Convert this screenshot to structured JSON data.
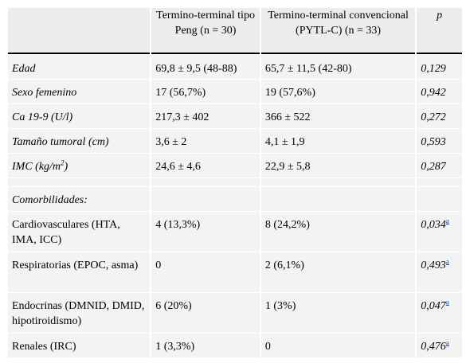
{
  "header": {
    "col1": "",
    "col2": "Termino-terminal tipo Peng (n = 30)",
    "col3": "Termino-terminal convencional (PYTL-C) (n = 33)",
    "col4": "p"
  },
  "rows": [
    {
      "label": "Edad",
      "a": "69,8 ± 9,5 (48-88)",
      "b": "65,7 ± 11,5 (42-80)",
      "p": "0,129"
    },
    {
      "label": "Sexo femenino",
      "a": "17 (56,7%)",
      "b": "19 (57,6%)",
      "p": "0,942"
    },
    {
      "label": "Ca 19-9 (U/l)",
      "a": "217,3 ± 402",
      "b": "366 ± 522",
      "p": "0,272"
    },
    {
      "label": "Tamaño tumoral (cm)",
      "a": "3,6 ± 2",
      "b": "4,1 ± 1,9",
      "p": "0,593"
    },
    {
      "label_pre": "IMC (kg/m",
      "label_sup": "2",
      "label_post": ")",
      "a": "24,6 ± 4,6",
      "b": "22,9 ± 5,8",
      "p": "0,287"
    }
  ],
  "comorb_title": "Comorbilidades:",
  "comorb": [
    {
      "label": " Cardiovasculares (HTA, IMA, ICC)",
      "a": "4 (13,3%)",
      "b": "8 (24,2%)",
      "p": "0,034",
      "note": "a"
    },
    {
      "label": " Respiratorias (EPOC, asma)",
      "a": "0",
      "b": "2 (6,1%)",
      "p": "0,493",
      "note": "a"
    },
    {
      "label": " Endocrinas (DMNID, DMID, hipotiroidismo)",
      "a": "6 (20%)",
      "b": "1 (3%)",
      "p": "0,047",
      "note": "a"
    },
    {
      "label": " Renales (IRC)",
      "a": "1 (3,3%)",
      "b": "0",
      "p": "0,476",
      "note": "a"
    }
  ]
}
